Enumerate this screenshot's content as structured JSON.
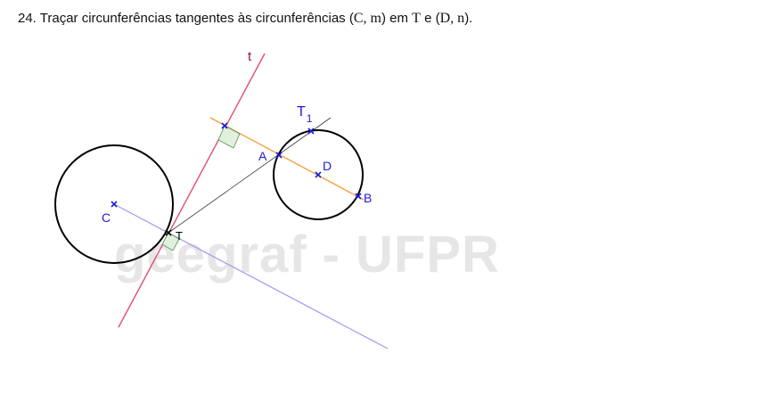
{
  "title": {
    "prefix": "24. Traçar circunferências tangentes às circunferências (",
    "m1": "C, m",
    "mid1": ") em ",
    "m2": "T",
    "mid2": " e (",
    "m3": "D, n",
    "suffix": ")."
  },
  "watermark": "geegraf - UFPR",
  "labels": {
    "t": "t",
    "T1": "T",
    "T1_sub": "1",
    "A": "A",
    "D": "D",
    "B": "B",
    "C": "C",
    "T": "T"
  },
  "colors": {
    "circle": "#000000",
    "tangent_line": "#e0506e",
    "perpendicular_line": "#9a9af0",
    "orange_line": "#f5a040",
    "construction_line": "#333333",
    "point_blue": "#1a1add",
    "right_angle_fill": "#dff0dc",
    "right_angle_stroke": "#5a8a55"
  }
}
